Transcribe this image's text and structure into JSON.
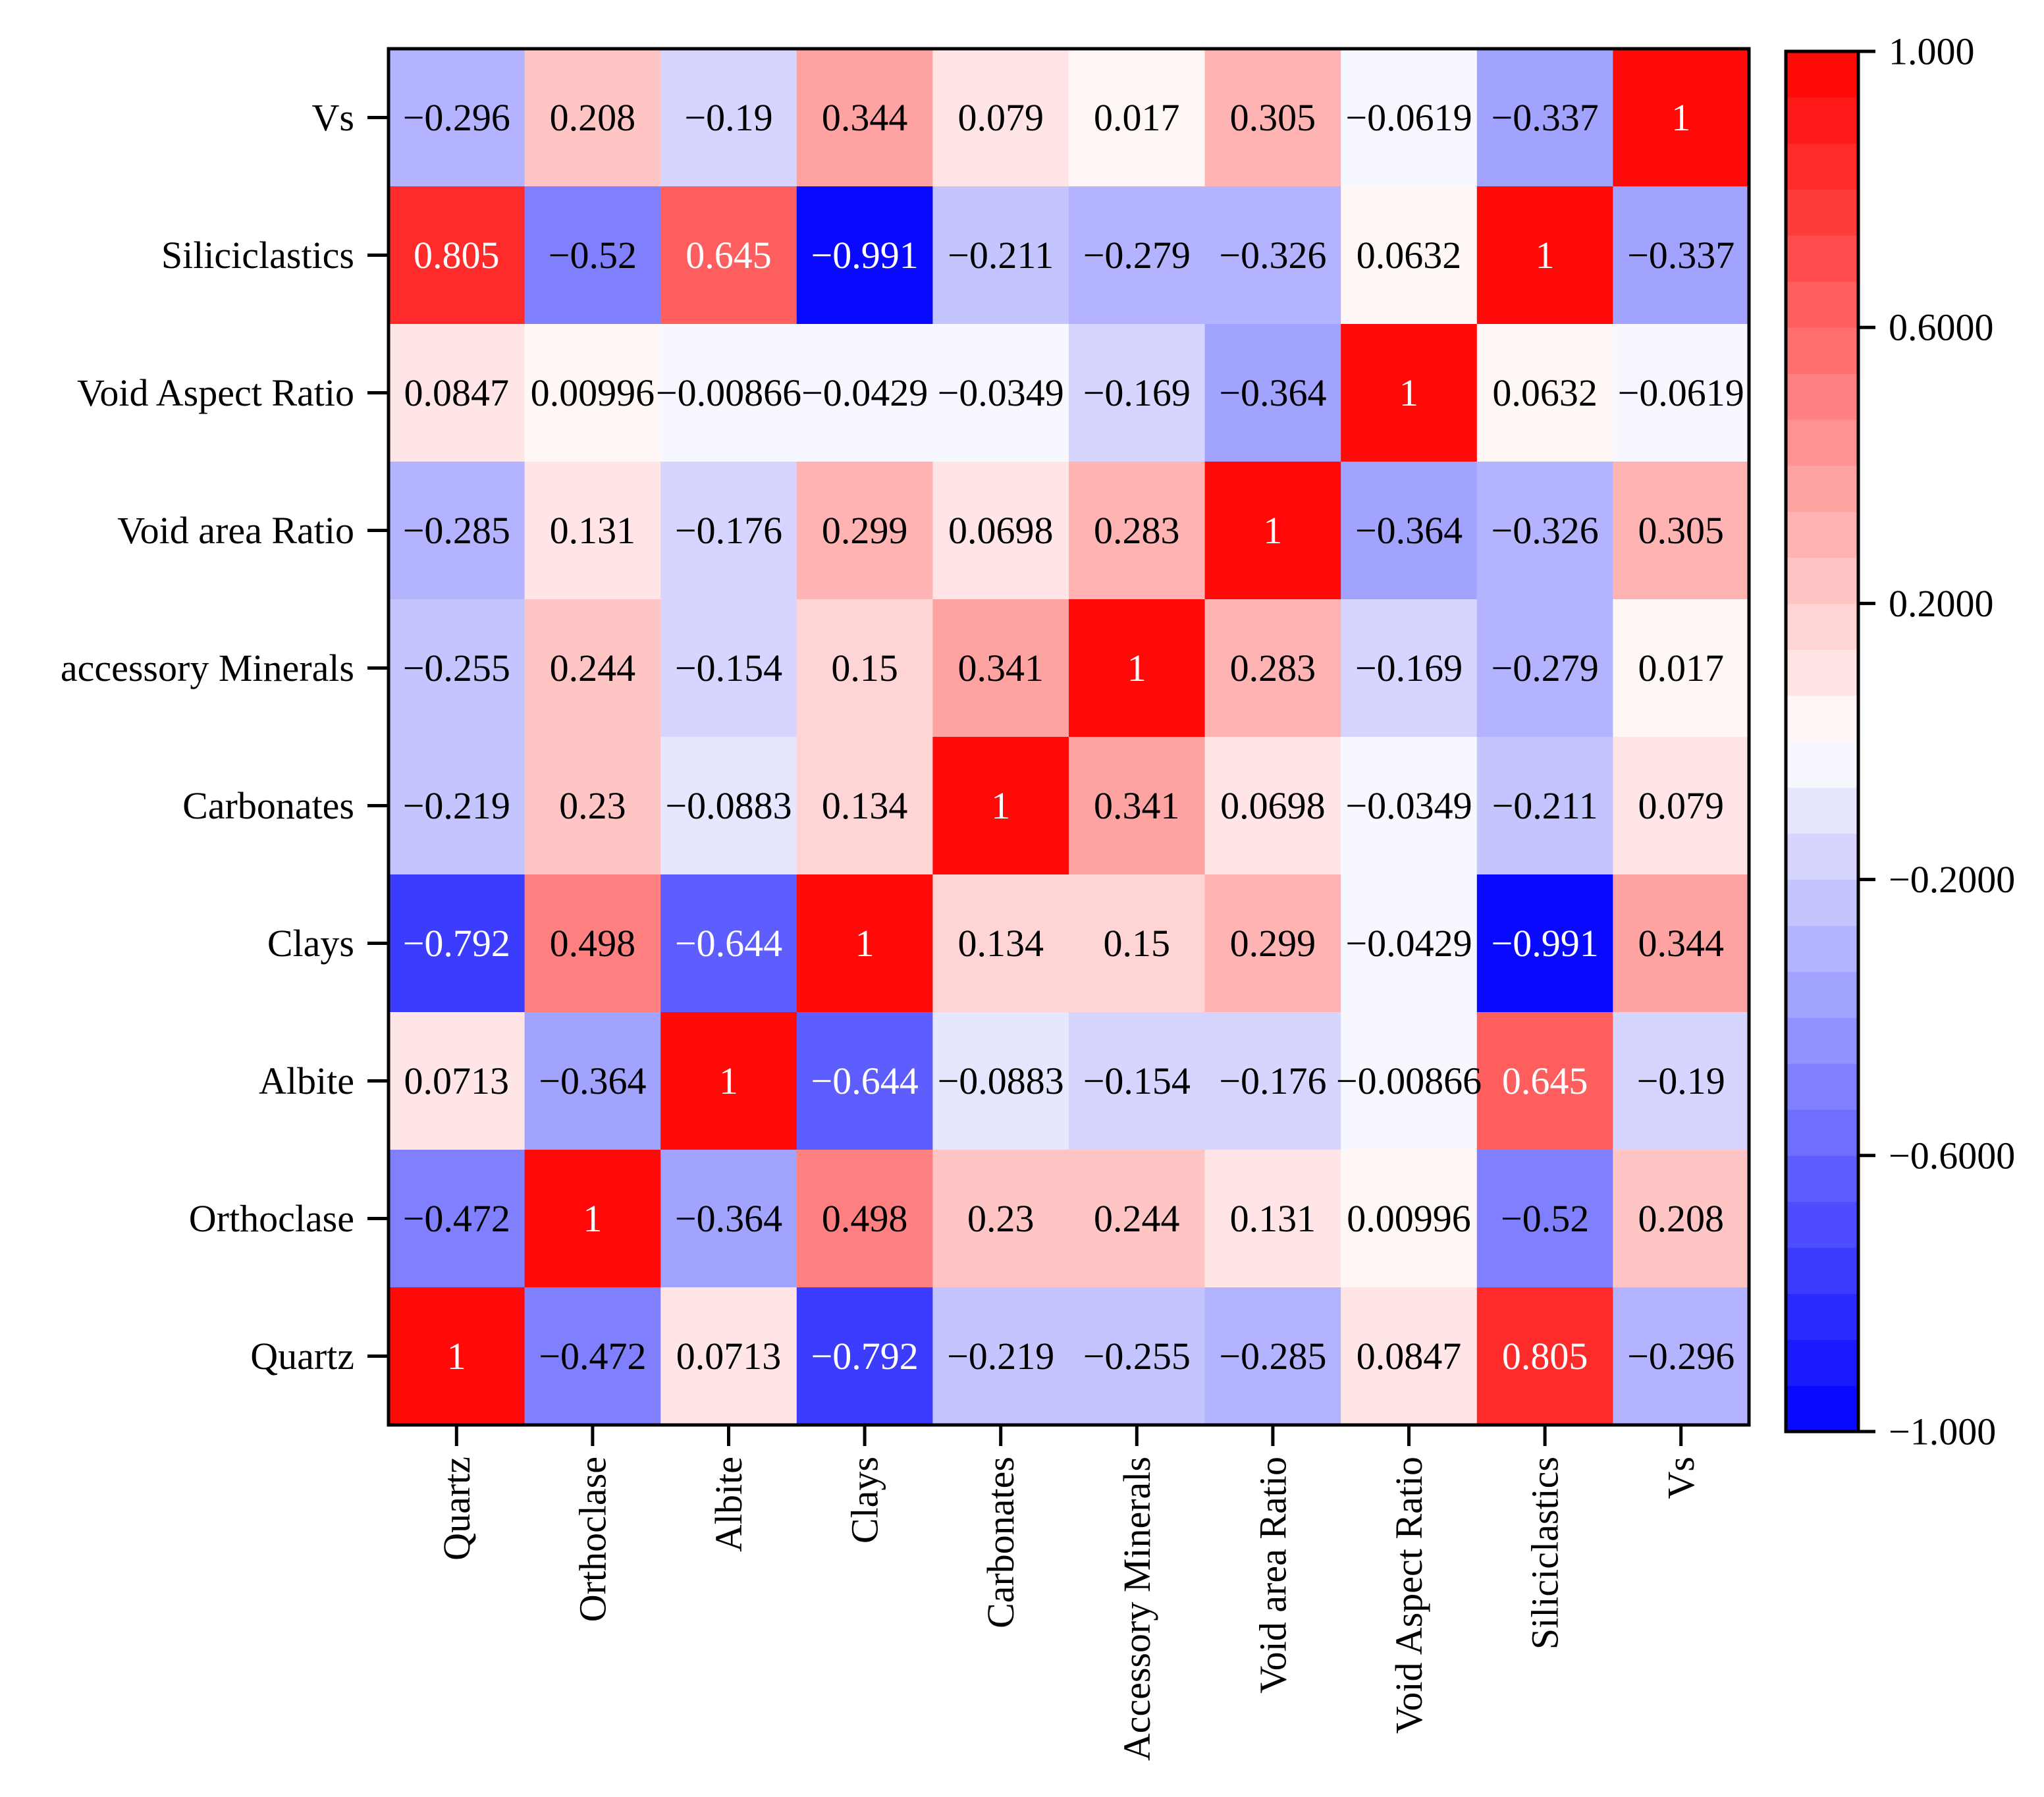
{
  "chart_data": {
    "type": "heatmap",
    "title": "",
    "xlabel": "",
    "ylabel": "",
    "x_labels": [
      "Quartz",
      "Orthoclase",
      "Albite",
      "Clays",
      "Carbonates",
      "Accessory Minerals",
      "Void area Ratio",
      "Void Aspect Ratio",
      "Siliciclastics",
      "Vs"
    ],
    "y_labels": [
      "Vs",
      "Siliciclastics",
      "Void Aspect Ratio",
      "Void area Ratio",
      "accessory Minerals",
      "Carbonates",
      "Clays",
      "Albite",
      "Orthoclase",
      "Quartz"
    ],
    "cell_labels": [
      [
        "−0.296",
        "0.208",
        "−0.19",
        "0.344",
        "0.079",
        "0.017",
        "0.305",
        "−0.0619",
        "−0.337",
        "1"
      ],
      [
        "0.805",
        "−0.52",
        "0.645",
        "−0.991",
        "−0.211",
        "−0.279",
        "−0.326",
        "0.0632",
        "1",
        "−0.337"
      ],
      [
        "0.0847",
        "0.00996",
        "−0.00866",
        "−0.0429",
        "−0.0349",
        "−0.169",
        "−0.364",
        "1",
        "0.0632",
        "−0.0619"
      ],
      [
        "−0.285",
        "0.131",
        "−0.176",
        "0.299",
        "0.0698",
        "0.283",
        "1",
        "−0.364",
        "−0.326",
        "0.305"
      ],
      [
        "−0.255",
        "0.244",
        "−0.154",
        "0.15",
        "0.341",
        "1",
        "0.283",
        "−0.169",
        "−0.279",
        "0.017"
      ],
      [
        "−0.219",
        "0.23",
        "−0.0883",
        "0.134",
        "1",
        "0.341",
        "0.0698",
        "−0.0349",
        "−0.211",
        "0.079"
      ],
      [
        "−0.792",
        "0.498",
        "−0.644",
        "1",
        "0.134",
        "0.15",
        "0.299",
        "−0.0429",
        "−0.991",
        "0.344"
      ],
      [
        "0.0713",
        "−0.364",
        "1",
        "−0.644",
        "−0.0883",
        "−0.154",
        "−0.176",
        "−0.00866",
        "0.645",
        "−0.19"
      ],
      [
        "−0.472",
        "1",
        "−0.364",
        "0.498",
        "0.23",
        "0.244",
        "0.131",
        "0.00996",
        "−0.52",
        "0.208"
      ],
      [
        "1",
        "−0.472",
        "0.0713",
        "−0.792",
        "−0.219",
        "−0.255",
        "−0.285",
        "0.0847",
        "0.805",
        "−0.296"
      ]
    ],
    "values": [
      [
        -0.296,
        0.208,
        -0.19,
        0.344,
        0.079,
        0.017,
        0.305,
        -0.0619,
        -0.337,
        1
      ],
      [
        0.805,
        -0.52,
        0.645,
        -0.991,
        -0.211,
        -0.279,
        -0.326,
        0.0632,
        1,
        -0.337
      ],
      [
        0.0847,
        0.00996,
        -0.00866,
        -0.0429,
        -0.0349,
        -0.169,
        -0.364,
        1,
        0.0632,
        -0.0619
      ],
      [
        -0.285,
        0.131,
        -0.176,
        0.299,
        0.0698,
        0.283,
        1,
        -0.364,
        -0.326,
        0.305
      ],
      [
        -0.255,
        0.244,
        -0.154,
        0.15,
        0.341,
        1,
        0.283,
        -0.169,
        -0.279,
        0.017
      ],
      [
        -0.219,
        0.23,
        -0.0883,
        0.134,
        1,
        0.341,
        0.0698,
        -0.0349,
        -0.211,
        0.079
      ],
      [
        -0.792,
        0.498,
        -0.644,
        1,
        0.134,
        0.15,
        0.299,
        -0.0429,
        -0.991,
        0.344
      ],
      [
        0.0713,
        -0.364,
        1,
        -0.644,
        -0.0883,
        -0.154,
        -0.176,
        -0.00866,
        0.645,
        -0.19
      ],
      [
        -0.472,
        1,
        -0.364,
        0.498,
        0.23,
        0.244,
        0.131,
        0.00996,
        -0.52,
        0.208
      ],
      [
        1,
        -0.472,
        0.0713,
        -0.792,
        -0.219,
        -0.255,
        -0.285,
        0.0847,
        0.805,
        -0.296
      ]
    ],
    "colorbar": {
      "range": [
        -1.0,
        1.0
      ],
      "levels": 30,
      "ticks": [
        1.0,
        0.6,
        0.2,
        -0.2,
        -0.6,
        -1.0
      ],
      "tick_labels": [
        "1.000",
        "0.6000",
        "0.2000",
        "−0.2000",
        "−0.6000",
        "−1.000"
      ],
      "low_color": "#0000ff",
      "mid_color": "#ffffff",
      "high_color": "#ff0000"
    }
  }
}
